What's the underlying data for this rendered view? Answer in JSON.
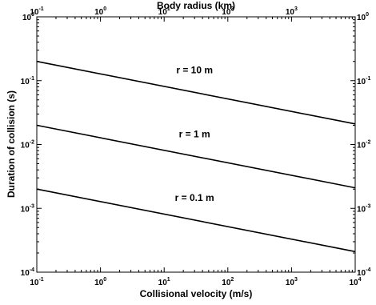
{
  "chart_data": {
    "type": "line",
    "title": "",
    "xlabel": "Collisional velocity (m/s)",
    "ylabel": "Duration of collision (s)",
    "top_xlabel": "Body radius (km)",
    "xscale": "log",
    "yscale": "log",
    "xlim": [
      0.1,
      10000
    ],
    "ylim": [
      0.0001,
      1
    ],
    "top_xlim": [
      0.1,
      10000
    ],
    "grid": false,
    "x_ticks": [
      {
        "base": "10",
        "exp": "-1"
      },
      {
        "base": "10",
        "exp": "0"
      },
      {
        "base": "10",
        "exp": "1"
      },
      {
        "base": "10",
        "exp": "2"
      },
      {
        "base": "10",
        "exp": "3"
      },
      {
        "base": "10",
        "exp": "4"
      }
    ],
    "top_x_ticks": [
      {
        "base": "10",
        "exp": "-1"
      },
      {
        "base": "10",
        "exp": "0"
      },
      {
        "base": "10",
        "exp": "1"
      },
      {
        "base": "10",
        "exp": "2"
      },
      {
        "base": "10",
        "exp": "3"
      }
    ],
    "y_ticks": [
      {
        "base": "10",
        "exp": "0"
      },
      {
        "base": "10",
        "exp": "-1"
      },
      {
        "base": "10",
        "exp": "-2"
      },
      {
        "base": "10",
        "exp": "-3"
      },
      {
        "base": "10",
        "exp": "-4"
      }
    ],
    "right_y_ticks": [
      {
        "base": "10",
        "exp": "0"
      },
      {
        "base": "10",
        "exp": "-1"
      },
      {
        "base": "10",
        "exp": "-2"
      },
      {
        "base": "10",
        "exp": "-3"
      },
      {
        "base": "10",
        "exp": "-4"
      }
    ],
    "series": [
      {
        "label": "r = 10 m",
        "x": [
          0.1,
          10000
        ],
        "y": [
          0.2,
          0.021
        ],
        "label_at": {
          "x": 30,
          "y": 0.13
        }
      },
      {
        "label": "r = 1 m",
        "x": [
          0.1,
          10000
        ],
        "y": [
          0.02,
          0.0021
        ],
        "label_at": {
          "x": 30,
          "y": 0.013
        }
      },
      {
        "label": "r = 0.1 m",
        "x": [
          0.1,
          10000
        ],
        "y": [
          0.002,
          0.00021
        ],
        "label_at": {
          "x": 30,
          "y": 0.0013
        }
      }
    ],
    "line_color": "#000000"
  }
}
